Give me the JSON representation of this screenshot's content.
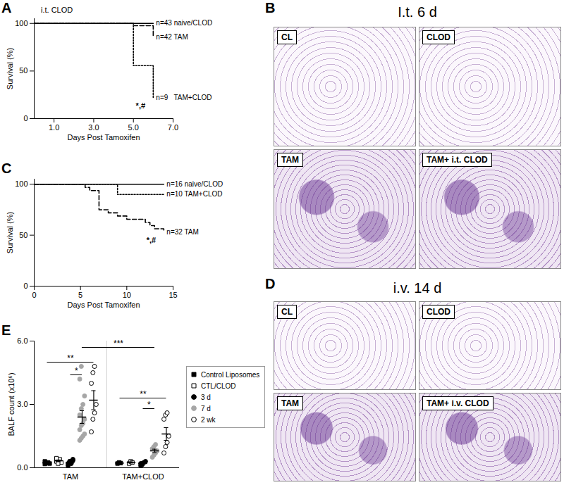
{
  "chart_data": [
    {
      "type": "line",
      "panel": "A",
      "title": "i.t. CLOD",
      "x_label": "Days Post Tamoxifen",
      "y_label": "Survival (%)",
      "xlim": [
        0,
        7
      ],
      "xticks": [
        1,
        3,
        5,
        7
      ],
      "ylim": [
        0,
        105
      ],
      "yticks": [
        0,
        50,
        100
      ],
      "x": [
        0,
        5,
        6
      ],
      "series": [
        {
          "name": "n=43 naive/CLOD",
          "color": "#000000",
          "line_style": "solid",
          "values": [
            100,
            100,
            100
          ]
        },
        {
          "name": "n=42 TAM",
          "color": "#000000",
          "line_style": "dashed",
          "values": [
            100,
            97.6,
            85.7
          ]
        },
        {
          "name": "n=9   TAM+CLOD",
          "color": "#000000",
          "line_style": "dotted",
          "values": [
            100,
            55.6,
            22.2
          ],
          "annotation": "*,#"
        }
      ]
    },
    {
      "type": "line",
      "panel": "C",
      "x_label": "Days Post Tamoxifen",
      "y_label": "Survival (%)",
      "xlim": [
        0,
        15
      ],
      "xticks": [
        0,
        5,
        10,
        15
      ],
      "ylim": [
        0,
        105
      ],
      "yticks": [
        0,
        50,
        100
      ],
      "series": [
        {
          "name": "n=16 naive/CLOD",
          "color": "#000000",
          "line_style": "solid",
          "x": [
            0,
            14
          ],
          "values": [
            100,
            100
          ]
        },
        {
          "name": "n=10 TAM+CLOD",
          "color": "#000000",
          "line_style": "dotted",
          "x": [
            0,
            9,
            14
          ],
          "values": [
            100,
            90,
            90
          ]
        },
        {
          "name": "n=32 TAM",
          "color": "#000000",
          "line_style": "dashed",
          "x": [
            0,
            5.5,
            6,
            7,
            8,
            9,
            10,
            12,
            12.5,
            13,
            14
          ],
          "values": [
            100,
            96.9,
            93.8,
            75,
            71.9,
            68.8,
            65.6,
            62.5,
            59.4,
            56.3,
            53.1
          ],
          "annotation": "*,#"
        }
      ]
    },
    {
      "type": "scatter",
      "panel": "E",
      "y_label": "BALF count (x10⁶)",
      "categories": [
        "TAM",
        "TAM+CLOD"
      ],
      "ylim": [
        0,
        6
      ],
      "yticks": [
        0,
        3,
        6
      ],
      "legend": "right",
      "series": [
        {
          "name": "Control Liposomes",
          "marker": "square",
          "color": "#000000",
          "values": [
            [
              0.18,
              0.22,
              0.25,
              0.2,
              0.3
            ],
            [
              0.2,
              0.25,
              0.22
            ]
          ],
          "mean": [
            0.23,
            0.22
          ],
          "sem": [
            0.02,
            0.02
          ]
        },
        {
          "name": "CTL/CLOD",
          "marker": "square-open",
          "color": "#000000",
          "values": [
            [
              0.3,
              0.35,
              0.4,
              0.25,
              0.45,
              0.2
            ],
            [
              0.2,
              0.3,
              0.25
            ]
          ],
          "mean": [
            0.33,
            0.25
          ],
          "sem": [
            0.04,
            0.03
          ]
        },
        {
          "name": "3 d",
          "marker": "circle",
          "color": "#000000",
          "values": [
            [
              0.2,
              0.3,
              0.25,
              0.4,
              0.1,
              0.3,
              0.2,
              0.35
            ],
            [
              0.1,
              0.2,
              0.25,
              0.3,
              0.2,
              0.15
            ]
          ],
          "mean": [
            0.26,
            0.2
          ],
          "sem": [
            0.03,
            0.03
          ]
        },
        {
          "name": "7 d",
          "marker": "circle",
          "color": "#a6a6a6",
          "values": [
            [
              1.3,
              1.4,
              1.5,
              1.6,
              1.8,
              2.0,
              2.1,
              2.3,
              2.5,
              2.8,
              3.0,
              3.4,
              4.2,
              4.8
            ],
            [
              0.5,
              0.6,
              0.7,
              0.8,
              0.9,
              1.0,
              1.1
            ]
          ],
          "mean": [
            2.4,
            0.8
          ],
          "sem": [
            0.3,
            0.08
          ]
        },
        {
          "name": "2 wk",
          "marker": "circle-open",
          "color": "#000000",
          "values": [
            [
              1.7,
              2.3,
              2.6,
              3.0,
              4.0,
              4.5,
              4.8
            ],
            [
              0.7,
              1.0,
              1.2,
              1.5,
              2.3,
              2.5,
              2.6
            ]
          ],
          "mean": [
            3.2,
            1.6
          ],
          "sem": [
            0.45,
            0.3
          ]
        }
      ],
      "significance": [
        {
          "label": "**",
          "y": 5.0,
          "from": {
            "category": "TAM",
            "series": "Control Liposomes"
          },
          "to": {
            "category": "TAM",
            "series": "2 wk"
          }
        },
        {
          "label": "*",
          "y": 4.4,
          "from": {
            "category": "TAM",
            "series": "3 d"
          },
          "to": {
            "category": "TAM",
            "series": "7 d"
          }
        },
        {
          "label": "**",
          "y": 3.3,
          "from": {
            "category": "TAM+CLOD",
            "series": "Control Liposomes"
          },
          "to": {
            "category": "TAM+CLOD",
            "series": "2 wk"
          }
        },
        {
          "label": "*",
          "y": 2.8,
          "from": {
            "category": "TAM+CLOD",
            "series": "3 d"
          },
          "to": {
            "category": "TAM+CLOD",
            "series": "7 d"
          }
        },
        {
          "label": "***",
          "y": 5.7,
          "from": {
            "category": "TAM",
            "series": "7 d"
          },
          "to": {
            "category": "TAM+CLOD",
            "series": "7 d"
          }
        }
      ]
    }
  ],
  "image_panels": [
    {
      "panel": "B",
      "title": "I.t. 6 d",
      "labels": [
        "CL",
        "CLOD",
        "TAM",
        "TAM+ i.t. CLOD"
      ]
    },
    {
      "panel": "D",
      "title": "i.v. 14 d",
      "labels": [
        "CL",
        "CLOD",
        "TAM",
        "TAM+ i.v. CLOD"
      ]
    }
  ]
}
